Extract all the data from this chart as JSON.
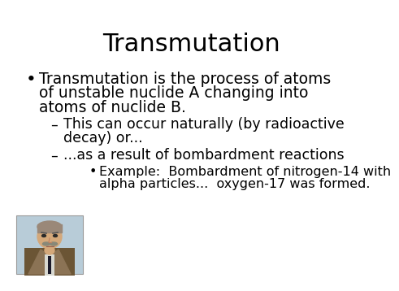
{
  "title": "Transmutation",
  "title_fontsize": 22,
  "background_color": "#ffffff",
  "text_color": "#000000",
  "bullet1_line1": "Transmutation is the process of atoms",
  "bullet1_line2": "of unstable nuclide A changing into",
  "bullet1_line3": "atoms of nuclide B.",
  "sub1_line1": "This can occur naturally (by radioactive",
  "sub1_line2": "decay) or...",
  "sub2": "...as a result of bombardment reactions",
  "sub_sub1_line1": "Example:  Bombardment of nitrogen-14 with",
  "sub_sub1_line2": "alpha particles...  oxygen-17 was formed.",
  "bullet_fontsize": 13.5,
  "sub_fontsize": 12.5,
  "sub_sub_fontsize": 11.5,
  "portrait_colors": {
    "background": "#b8ccd8",
    "jacket": "#8b7355",
    "jacket_dark": "#6b5535",
    "face": "#d4a87a",
    "hair": "#9a8878",
    "mustache": "#888878",
    "shirt": "#e8e8e8",
    "tie": "#1a1a2a"
  }
}
